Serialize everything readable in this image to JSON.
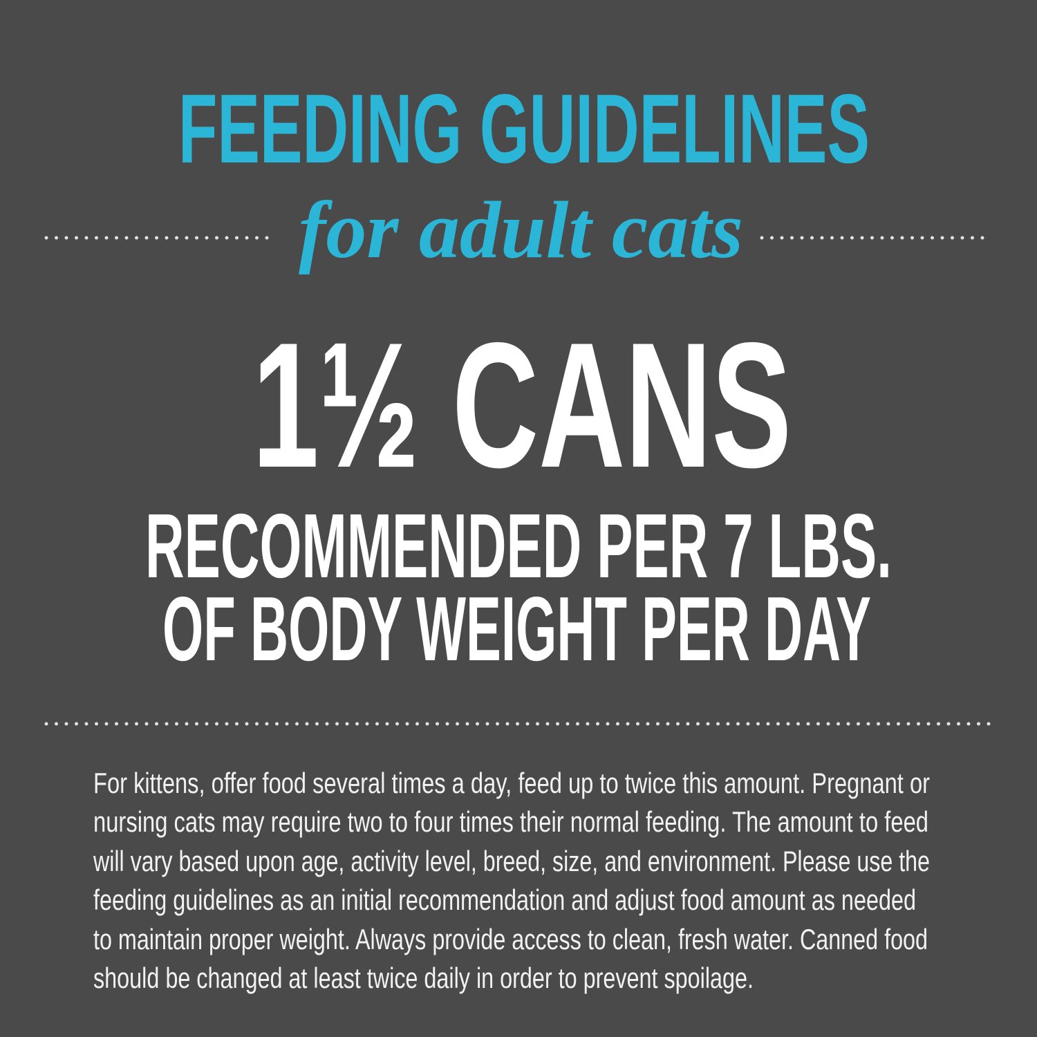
{
  "header": {
    "title": "FEEDING GUIDELINES",
    "subtitle": "for adult cats"
  },
  "main": {
    "amount": "1½ CANS",
    "line1": "RECOMMENDED PER 7 LBS.",
    "line2": "OF BODY WEIGHT PER DAY"
  },
  "body": {
    "lines": [
      "For kittens, offer food several times a day, feed up to twice this amount. Pregnant or",
      "nursing cats may require two to four times their normal feeding. The amount to feed",
      "will vary based upon age, activity level, breed, size, and environment. Please use the",
      "feeding guidelines as an initial recommendation and adjust food amount as needed",
      "to maintain proper weight. Always provide access to clean, fresh water. Canned food",
      "should be changed at least twice daily in order to prevent spoilage."
    ]
  }
}
